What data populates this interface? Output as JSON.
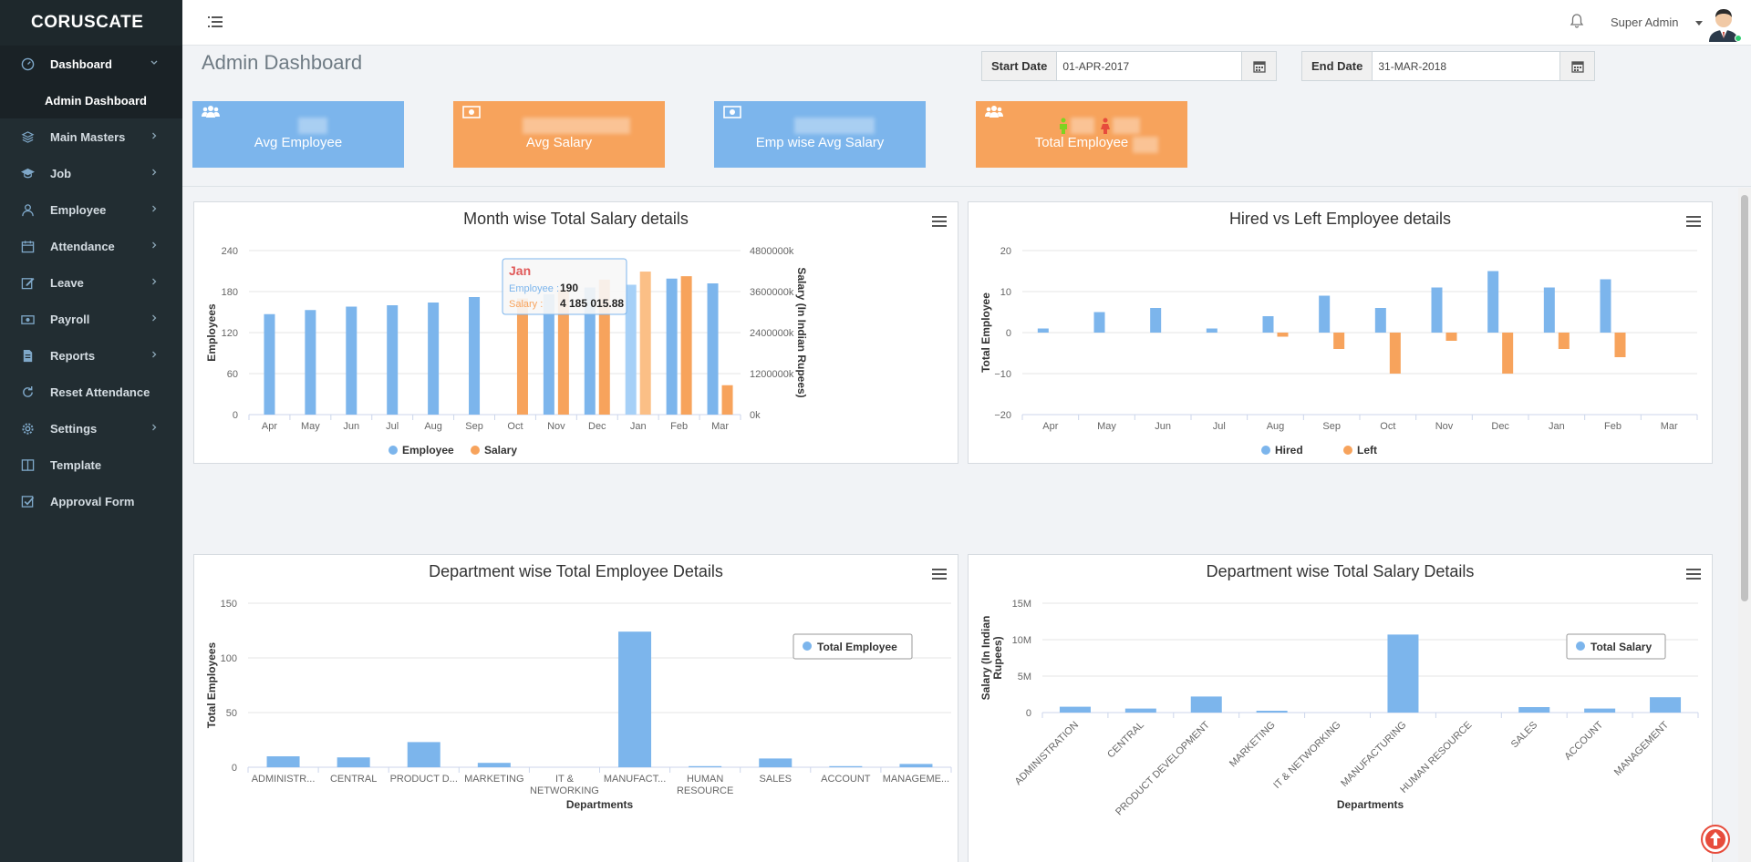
{
  "brand": "CORUSCATE",
  "nav": {
    "items": [
      {
        "label": "Dashboard",
        "icon": "dashboard-icon"
      },
      {
        "label": "Main Masters",
        "icon": "layers-icon"
      },
      {
        "label": "Job",
        "icon": "graduation-cap-icon"
      },
      {
        "label": "Employee",
        "icon": "user-icon"
      },
      {
        "label": "Attendance",
        "icon": "calendar-icon"
      },
      {
        "label": "Leave",
        "icon": "edit-icon"
      },
      {
        "label": "Payroll",
        "icon": "money-icon"
      },
      {
        "label": "Reports",
        "icon": "file-icon"
      },
      {
        "label": "Reset Attendance",
        "icon": "refresh-icon"
      },
      {
        "label": "Settings",
        "icon": "gear-icon"
      },
      {
        "label": "Template",
        "icon": "columns-icon"
      },
      {
        "label": "Approval Form",
        "icon": "checkbox-icon"
      }
    ],
    "subitem": "Admin Dashboard"
  },
  "header": {
    "user_name": "Super Admin"
  },
  "page": {
    "title": "Admin Dashboard"
  },
  "filters": {
    "start_label": "Start Date",
    "start_value": "01-APR-2017",
    "end_label": "End Date",
    "end_value": "31-MAR-2018"
  },
  "stats": [
    {
      "label": "Avg Employee",
      "color": "blue",
      "icon": "users-icon"
    },
    {
      "label": "Avg Salary",
      "color": "orange",
      "icon": "money-icon"
    },
    {
      "label": "Emp wise Avg Salary",
      "color": "blue",
      "icon": "money-icon"
    },
    {
      "label": "Total Employee",
      "color": "orange",
      "icon": "users-icon"
    }
  ],
  "colors": {
    "blue": "#7cb5ec",
    "orange": "#f7a35c",
    "sidebar": "#222d32"
  },
  "chart_data": [
    {
      "type": "bar",
      "title": "Month wise Total Salary details",
      "categories": [
        "Apr",
        "May",
        "Jun",
        "Jul",
        "Aug",
        "Sep",
        "Oct",
        "Nov",
        "Dec",
        "Jan",
        "Feb",
        "Mar"
      ],
      "ylabel": "Employees",
      "y2label": "Salary (In Indian Rupees)",
      "ylim": [
        0,
        240
      ],
      "yticks": [
        "0",
        "60",
        "120",
        "180",
        "240"
      ],
      "y2lim": [
        0,
        4800000
      ],
      "y2ticks": [
        "0k",
        "1200000k",
        "2400000k",
        "3600000k",
        "4800000k"
      ],
      "series": [
        {
          "name": "Employee",
          "axis": "left",
          "values": [
            147,
            153,
            158,
            160,
            164,
            172,
            null,
            176,
            186,
            190,
            199,
            192
          ]
        },
        {
          "name": "Salary",
          "axis": "right",
          "values": [
            null,
            null,
            null,
            null,
            null,
            null,
            3400000,
            3650000,
            3950000,
            4185015.88,
            4050000,
            860000
          ]
        }
      ],
      "tooltip": {
        "title": "Jan",
        "rows": [
          {
            "name": "Employee :",
            "value": "190"
          },
          {
            "name": "Salary :",
            "value": "4 185 015.88"
          }
        ]
      },
      "legend": "bottom"
    },
    {
      "type": "bar",
      "title": "Hired vs Left Employee details",
      "categories": [
        "Apr",
        "May",
        "Jun",
        "Jul",
        "Aug",
        "Sep",
        "Oct",
        "Nov",
        "Dec",
        "Jan",
        "Feb",
        "Mar"
      ],
      "ylabel": "Total Employee",
      "ylim": [
        -20,
        20
      ],
      "yticks": [
        "−20",
        "−10",
        "0",
        "10",
        "20"
      ],
      "series": [
        {
          "name": "Hired",
          "values": [
            1,
            5,
            6,
            1,
            4,
            9,
            6,
            11,
            15,
            11,
            13,
            0
          ]
        },
        {
          "name": "Left",
          "values": [
            0,
            0,
            0,
            0,
            -1,
            -4,
            -10,
            -2,
            -10,
            -4,
            -6,
            0
          ]
        }
      ],
      "legend": "bottom"
    },
    {
      "type": "bar",
      "title": "Department wise Total Employee Details",
      "categories": [
        "ADMINISTR...",
        "CENTRAL",
        "PRODUCT D...",
        "MARKETING",
        "IT & NETWORKING",
        "MANUFACT...",
        "HUMAN RESOURCE",
        "SALES",
        "ACCOUNT",
        "MANAGEME..."
      ],
      "xlabel": "Departments",
      "ylabel": "Total Employees",
      "ylim": [
        0,
        150
      ],
      "yticks": [
        "0",
        "50",
        "100",
        "150"
      ],
      "series": [
        {
          "name": "Total Employee",
          "values": [
            10,
            9,
            23,
            4,
            0,
            124,
            1,
            8,
            1,
            3
          ]
        }
      ],
      "legend": "top-right"
    },
    {
      "type": "bar",
      "title": "Department wise Total Salary Details",
      "categories": [
        "ADMINISTRATION",
        "CENTRAL",
        "PRODUCT DEVELOPMENT",
        "MARKETING",
        "IT & NETWORKING",
        "MANUFACTURING",
        "HUMAN RESOURCE",
        "SALES",
        "ACCOUNT",
        "MANAGEMENT"
      ],
      "xlabel": "Departments",
      "ylabel": "Salary (In Indian Rupees)",
      "ylim": [
        0,
        15000000
      ],
      "yticks": [
        "0",
        "5M",
        "10M",
        "15M"
      ],
      "series": [
        {
          "name": "Total Salary",
          "values": [
            800000,
            550000,
            2200000,
            250000,
            0,
            10700000,
            0,
            750000,
            550000,
            2100000
          ]
        }
      ],
      "legend": "top-right"
    }
  ]
}
